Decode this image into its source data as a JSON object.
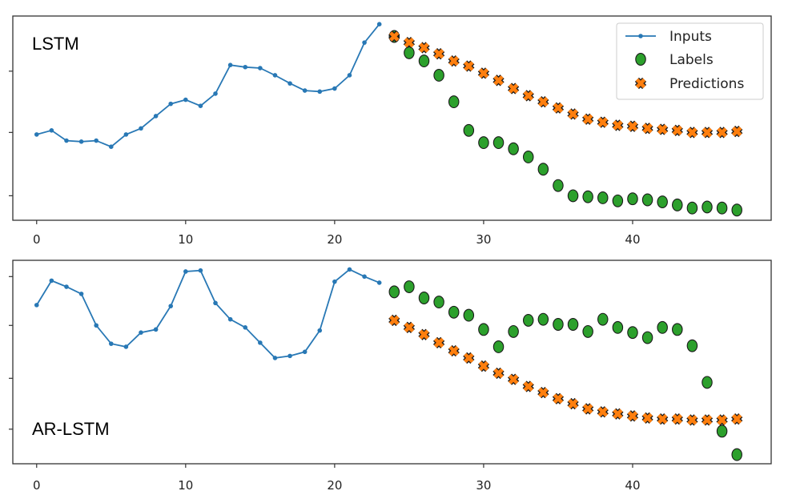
{
  "chart_data": [
    {
      "type": "line",
      "title": "",
      "panel_label": "LSTM",
      "xlabel": "",
      "ylabel": "",
      "xlim": [
        -1.6,
        49.3
      ],
      "ylim": [
        0,
        100
      ],
      "xticks": [
        0,
        10,
        20,
        30,
        40
      ],
      "ytick_marks": [
        12,
        43,
        73
      ],
      "grid": false,
      "legend": {
        "placement": "top-right",
        "entries": [
          "Inputs",
          "Labels",
          "Predictions"
        ]
      },
      "series": [
        {
          "name": "Inputs",
          "marker": "dot-line",
          "x": [
            0,
            1,
            2,
            3,
            4,
            5,
            6,
            7,
            8,
            9,
            10,
            11,
            12,
            13,
            14,
            15,
            16,
            17,
            18,
            19,
            20,
            21,
            22,
            23
          ],
          "y": [
            42,
            44,
            39,
            38.5,
            39,
            36,
            42,
            45,
            51,
            57,
            59,
            56,
            62,
            76,
            75,
            74.5,
            71,
            67,
            63.5,
            63,
            64.5,
            71,
            87,
            96
          ]
        },
        {
          "name": "Labels",
          "marker": "circle",
          "x": [
            24,
            25,
            26,
            27,
            28,
            29,
            30,
            31,
            32,
            33,
            34,
            35,
            36,
            37,
            38,
            39,
            40,
            41,
            42,
            43,
            44,
            45,
            46,
            47
          ],
          "y": [
            90,
            82,
            78,
            71,
            58,
            44,
            38,
            38,
            35,
            31,
            25,
            17,
            12,
            11.5,
            11,
            9.5,
            10.5,
            10,
            9,
            7.5,
            6,
            6.5,
            6,
            5
          ]
        },
        {
          "name": "Predictions",
          "marker": "x",
          "x": [
            24,
            25,
            26,
            27,
            28,
            29,
            30,
            31,
            32,
            33,
            34,
            35,
            36,
            37,
            38,
            39,
            40,
            41,
            42,
            43,
            44,
            45,
            46,
            47
          ],
          "y": [
            90,
            87,
            84.5,
            81.5,
            78,
            75.5,
            72,
            68.5,
            64.5,
            61,
            58,
            55,
            52,
            49.5,
            48,
            46.5,
            46,
            45,
            44.5,
            44,
            43,
            43,
            43,
            43.5
          ]
        }
      ]
    },
    {
      "type": "line",
      "title": "",
      "panel_label": "AR-LSTM",
      "xlabel": "",
      "ylabel": "",
      "xlim": [
        -1.6,
        49.3
      ],
      "ylim": [
        0,
        100
      ],
      "xticks": [
        0,
        10,
        20,
        30,
        40
      ],
      "ytick_marks": [
        17,
        42,
        68,
        92
      ],
      "grid": false,
      "series": [
        {
          "name": "Inputs",
          "marker": "dot-line",
          "x": [
            0,
            1,
            2,
            3,
            4,
            5,
            6,
            7,
            8,
            9,
            10,
            11,
            12,
            13,
            14,
            15,
            16,
            17,
            18,
            19,
            20,
            21,
            22,
            23
          ],
          "y": [
            78,
            90,
            87,
            83.5,
            68,
            59,
            57.5,
            64.5,
            66,
            77.5,
            94.5,
            95,
            79,
            71,
            67,
            59.5,
            52,
            53,
            55,
            65.5,
            89.5,
            95.5,
            92,
            89
          ]
        },
        {
          "name": "Labels",
          "marker": "circle",
          "x": [
            24,
            25,
            26,
            27,
            28,
            29,
            30,
            31,
            32,
            33,
            34,
            35,
            36,
            37,
            38,
            39,
            40,
            41,
            42,
            43,
            44,
            45,
            46,
            47
          ],
          "y": [
            84.5,
            87,
            81.5,
            79.5,
            74.5,
            73,
            66,
            57.5,
            65,
            70.5,
            71,
            68.5,
            68.5,
            65,
            71,
            67,
            64.5,
            62,
            67,
            66,
            58,
            40,
            16,
            4.5
          ]
        },
        {
          "name": "Predictions",
          "marker": "x",
          "x": [
            24,
            25,
            26,
            27,
            28,
            29,
            30,
            31,
            32,
            33,
            34,
            35,
            36,
            37,
            38,
            39,
            40,
            41,
            42,
            43,
            44,
            45,
            46,
            47
          ],
          "y": [
            70.5,
            67,
            63.5,
            59.5,
            55.5,
            52,
            48,
            44.5,
            41.5,
            38,
            35,
            32,
            29.5,
            27,
            25.5,
            24.5,
            23.5,
            22.5,
            22,
            22,
            21.5,
            21.5,
            21.5,
            22
          ]
        }
      ]
    }
  ],
  "colors": {
    "inputs": "#2878b5",
    "labels_fill": "#2ca02c",
    "predictions_fill": "#ff7f0e",
    "marker_edge": "#1a1a1a",
    "axes": "#333333"
  }
}
